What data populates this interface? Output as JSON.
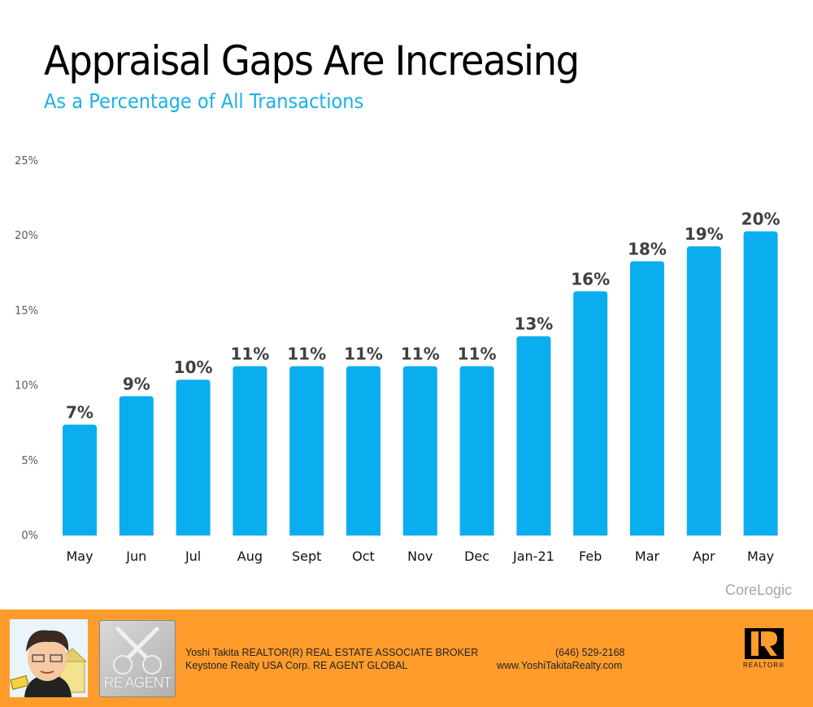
{
  "header": {
    "title": "Appraisal Gaps Are Increasing",
    "subtitle": "As a Percentage of All Transactions"
  },
  "chart_data": {
    "type": "bar",
    "title": "Appraisal Gaps Are Increasing",
    "subtitle": "As a Percentage of All Transactions",
    "xlabel": "",
    "ylabel": "",
    "categories": [
      "May",
      "Jun",
      "Jul",
      "Aug",
      "Sept",
      "Oct",
      "Nov",
      "Dec",
      "Jan-21",
      "Feb",
      "Mar",
      "Apr",
      "May"
    ],
    "values": [
      7.4,
      9.3,
      10.4,
      11.3,
      11.3,
      11.3,
      11.3,
      11.3,
      13.3,
      16.3,
      18.3,
      19.3,
      20.3
    ],
    "data_labels": [
      "7%",
      "9%",
      "10%",
      "11%",
      "11%",
      "11%",
      "11%",
      "11%",
      "13%",
      "16%",
      "18%",
      "19%",
      "20%"
    ],
    "ylim": [
      0,
      25
    ],
    "yticks": [
      0,
      5,
      10,
      15,
      20,
      25
    ],
    "ytick_labels": [
      "0%",
      "5%",
      "10%",
      "15%",
      "20%",
      "25%"
    ],
    "grid": false,
    "legend": "none",
    "bar_color": "#0aaeef",
    "label_color": "#404040"
  },
  "source": "CoreLogic",
  "footer": {
    "line1_left": "Yoshi Takita REALTOR(R) REAL ESTATE ASSOCIATE BROKER",
    "line2_left": "Keystone Realty USA Corp.  RE AGENT GLOBAL",
    "phone": "(646) 529-2168",
    "website": "www.YoshiTakitaRealty.com",
    "logo_text": "RE AGENT",
    "realtor_mark": "R",
    "realtor_label": "REALTOR®",
    "background": "#ff9c2c"
  }
}
